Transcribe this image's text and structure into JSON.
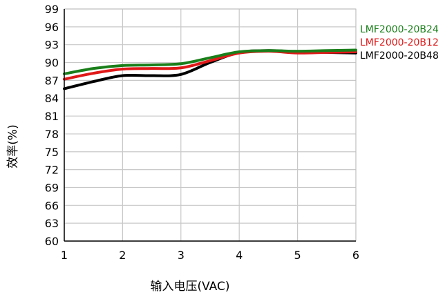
{
  "chart_data": {
    "type": "line",
    "xlabel": "输入电压(VAC)",
    "ylabel": "效率(%)",
    "xlim": [
      1,
      6
    ],
    "ylim": [
      60,
      99
    ],
    "xticks": [
      1,
      2,
      3,
      4,
      5,
      6
    ],
    "yticks": [
      60,
      63,
      66,
      69,
      72,
      75,
      78,
      81,
      84,
      87,
      90,
      93,
      96,
      99
    ],
    "grid": true,
    "legend": "right",
    "series": [
      {
        "name": "LMF2000-20B24",
        "color": "#1a7f1a",
        "x": [
          1,
          1.5,
          2,
          2.5,
          3,
          3.5,
          4,
          4.5,
          5,
          5.5,
          6
        ],
        "y": [
          88.1,
          89.0,
          89.5,
          89.6,
          89.8,
          90.8,
          91.8,
          92.0,
          91.9,
          92.0,
          92.1
        ]
      },
      {
        "name": "LMF2000-20B12",
        "color": "#e01818",
        "x": [
          1,
          1.5,
          2,
          2.5,
          3,
          3.5,
          4,
          4.5,
          5,
          5.5,
          6
        ],
        "y": [
          87.2,
          88.2,
          88.9,
          89.0,
          89.1,
          90.3,
          91.6,
          91.9,
          91.6,
          91.7,
          91.8
        ]
      },
      {
        "name": "LMF2000-20B48",
        "color": "#000000",
        "x": [
          1,
          1.5,
          2,
          2.5,
          3,
          3.5,
          4,
          4.5,
          5,
          5.5,
          6
        ],
        "y": [
          85.6,
          86.8,
          87.8,
          87.8,
          88.0,
          90.0,
          91.7,
          92.0,
          91.8,
          91.7,
          91.6
        ]
      }
    ]
  }
}
